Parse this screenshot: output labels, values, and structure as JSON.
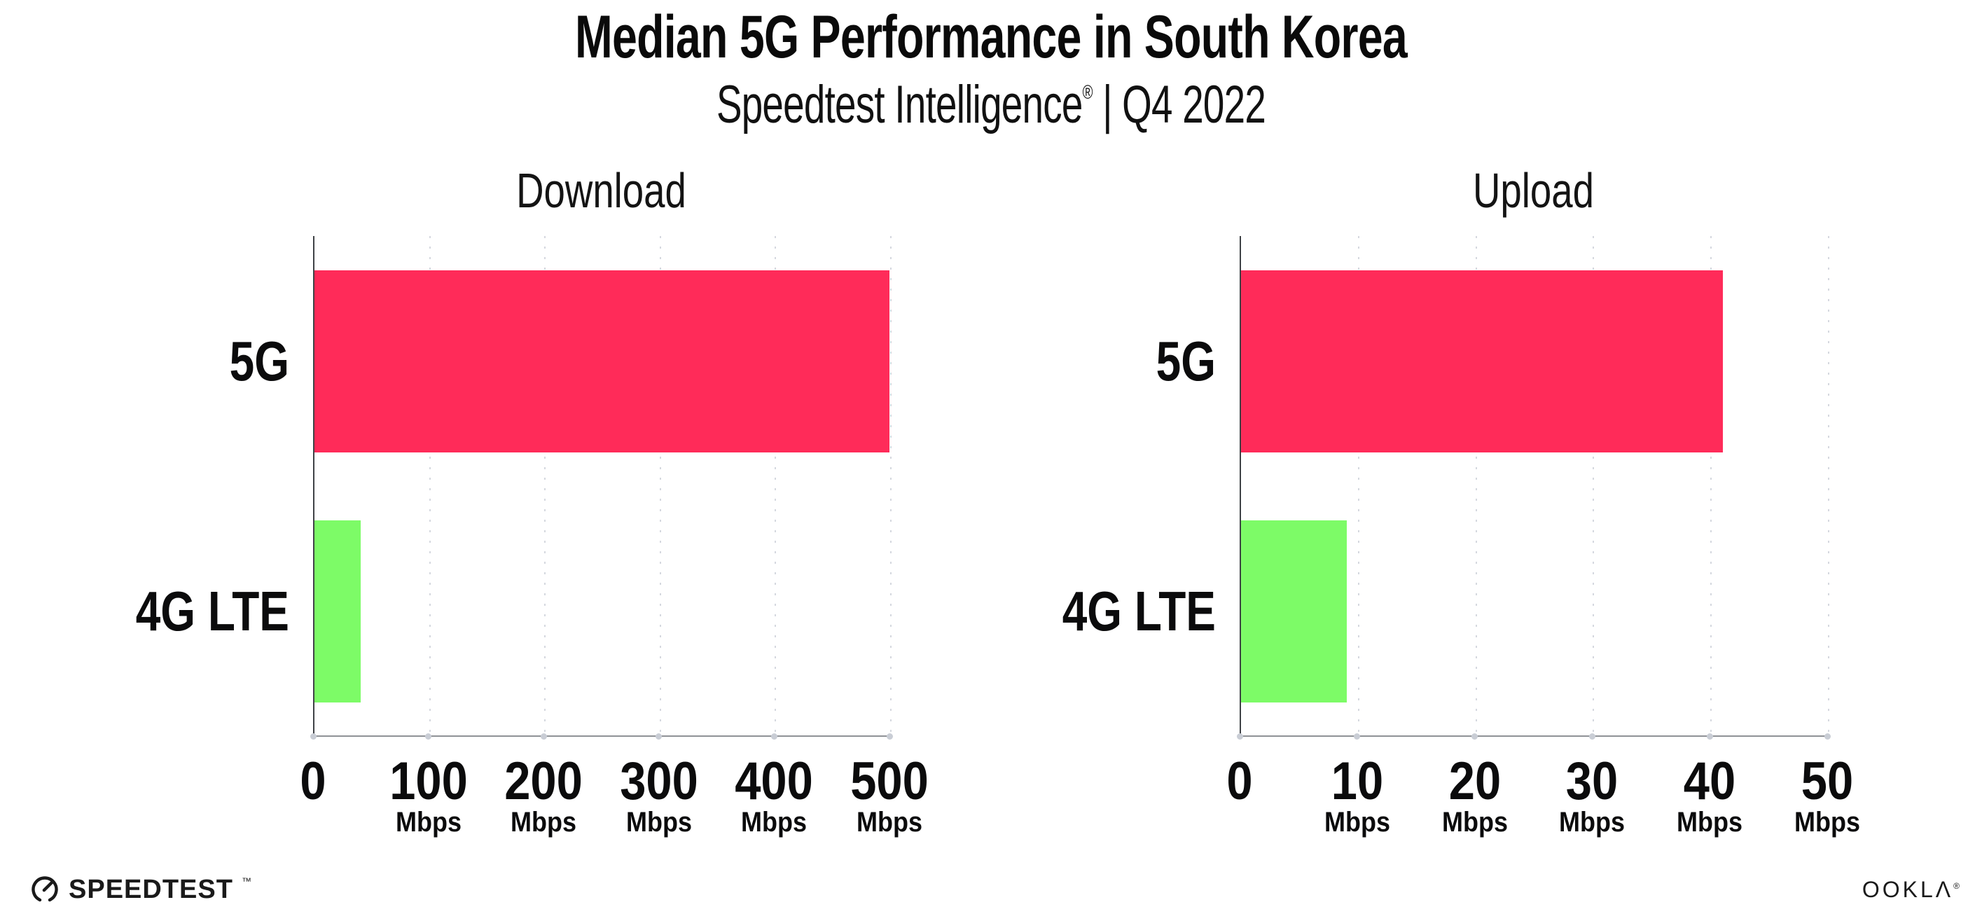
{
  "page": {
    "title": "Median 5G Performance in South Korea",
    "subtitle_brand": "Speedtest Intelligence",
    "subtitle_reg": "®",
    "subtitle_rest": " | Q4 2022"
  },
  "chart_data": [
    {
      "type": "bar",
      "orientation": "horizontal",
      "title": "Download",
      "categories": [
        "5G",
        "4G LTE"
      ],
      "values": [
        499,
        40
      ],
      "unit": "Mbps",
      "xlim": [
        0,
        500
      ],
      "xticks": [
        0,
        100,
        200,
        300,
        400,
        500
      ],
      "bar_colors": [
        "#FF2B59",
        "#7DFB67"
      ],
      "grid": "dotted-vertical-gridlines",
      "legend": "none"
    },
    {
      "type": "bar",
      "orientation": "horizontal",
      "title": "Upload",
      "categories": [
        "5G",
        "4G LTE"
      ],
      "values": [
        41,
        9
      ],
      "unit": "Mbps",
      "xlim": [
        0,
        50
      ],
      "xticks": [
        0,
        10,
        20,
        30,
        40,
        50
      ],
      "bar_colors": [
        "#FF2B59",
        "#7DFB67"
      ],
      "grid": "dotted-vertical-gridlines",
      "legend": "none"
    }
  ],
  "footer": {
    "speedtest_label": "SPEEDTEST",
    "speedtest_tm": "™",
    "ookla_label": "OOKLΛ",
    "ookla_reg": "®"
  },
  "colors": {
    "bar_5g": "#FF2B59",
    "bar_4g_lte": "#7DFB67",
    "gridline": "#D5D8DF",
    "axis_left": "#3F4246",
    "axis_bottom": "#8F9296",
    "text": "#0B0B0C",
    "background": "#FFFFFF"
  }
}
